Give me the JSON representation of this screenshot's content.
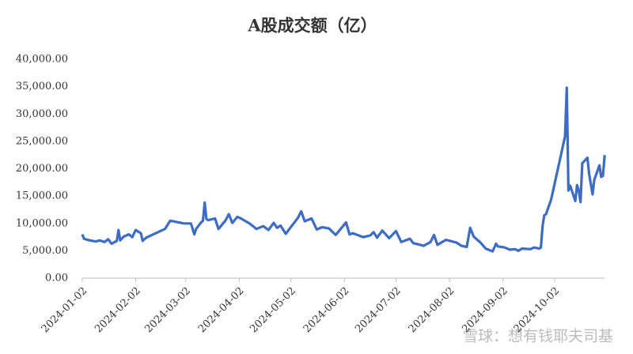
{
  "chart_data": {
    "type": "line",
    "title": "A股成交额（亿）",
    "x": [
      "2024-01-02",
      "2024-01-03",
      "2024-01-05",
      "2024-01-08",
      "2024-01-10",
      "2024-01-12",
      "2024-01-15",
      "2024-01-17",
      "2024-01-19",
      "2024-01-22",
      "2024-01-23",
      "2024-01-24",
      "2024-01-26",
      "2024-01-29",
      "2024-01-31",
      "2024-02-02",
      "2024-02-05",
      "2024-02-06",
      "2024-02-08",
      "2024-02-19",
      "2024-02-22",
      "2024-03-01",
      "2024-03-05",
      "2024-03-07",
      "2024-03-08",
      "2024-03-11",
      "2024-03-12",
      "2024-03-13",
      "2024-03-14",
      "2024-03-15",
      "2024-03-19",
      "2024-03-21",
      "2024-03-25",
      "2024-03-27",
      "2024-03-29",
      "2024-04-01",
      "2024-04-03",
      "2024-04-08",
      "2024-04-12",
      "2024-04-16",
      "2024-04-19",
      "2024-04-22",
      "2024-04-24",
      "2024-04-26",
      "2024-04-29",
      "2024-05-06",
      "2024-05-08",
      "2024-05-10",
      "2024-05-14",
      "2024-05-17",
      "2024-05-20",
      "2024-05-24",
      "2024-05-28",
      "2024-06-03",
      "2024-06-05",
      "2024-06-07",
      "2024-06-13",
      "2024-06-17",
      "2024-06-19",
      "2024-06-21",
      "2024-06-24",
      "2024-06-28",
      "2024-07-02",
      "2024-07-05",
      "2024-07-10",
      "2024-07-12",
      "2024-07-16",
      "2024-07-18",
      "2024-07-22",
      "2024-07-24",
      "2024-07-26",
      "2024-07-31",
      "2024-08-06",
      "2024-08-09",
      "2024-08-12",
      "2024-08-14",
      "2024-08-16",
      "2024-08-20",
      "2024-08-23",
      "2024-08-27",
      "2024-08-29",
      "2024-08-30",
      "2024-09-03",
      "2024-09-06",
      "2024-09-09",
      "2024-09-11",
      "2024-09-13",
      "2024-09-18",
      "2024-09-20",
      "2024-09-23",
      "2024-09-24",
      "2024-09-25",
      "2024-09-26",
      "2024-09-27",
      "2024-09-30",
      "2024-10-08",
      "2024-10-09",
      "2024-10-10",
      "2024-10-11",
      "2024-10-14",
      "2024-10-15",
      "2024-10-16",
      "2024-10-17",
      "2024-10-18",
      "2024-10-21",
      "2024-10-22",
      "2024-10-24",
      "2024-10-25",
      "2024-10-28",
      "2024-10-29",
      "2024-10-30",
      "2024-10-31"
    ],
    "series": [
      {
        "name": "A股成交额",
        "color": "#3d6cc4",
        "values": [
          8000,
          7200,
          7000,
          6800,
          6700,
          6900,
          6600,
          7100,
          6300,
          6800,
          8800,
          6900,
          7600,
          8000,
          7500,
          8800,
          8200,
          6800,
          7400,
          9000,
          10500,
          10000,
          10000,
          8000,
          9000,
          10200,
          10500,
          13800,
          10800,
          10600,
          10900,
          9000,
          10500,
          11700,
          10100,
          11200,
          10900,
          10000,
          9000,
          9500,
          8800,
          10100,
          9200,
          9600,
          8100,
          11000,
          12200,
          10400,
          10900,
          8900,
          9300,
          9100,
          7900,
          10200,
          8000,
          8200,
          7500,
          7800,
          8400,
          7400,
          8700,
          7300,
          8600,
          6600,
          7200,
          6400,
          6100,
          5900,
          6600,
          7900,
          6100,
          7000,
          6500,
          5900,
          5700,
          9200,
          7600,
          6500,
          5400,
          4900,
          6300,
          5800,
          5600,
          5200,
          5300,
          5000,
          5400,
          5300,
          5600,
          5400,
          5600,
          9500,
          11500,
          11700,
          14400,
          25900,
          34800,
          16000,
          16900,
          14100,
          17000,
          16000,
          13900,
          21000,
          22000,
          19000,
          15300,
          18000,
          20600,
          18500,
          18700,
          22500
        ]
      }
    ],
    "ylim": [
      0,
      40000
    ],
    "yticks": [
      {
        "value": 0,
        "label": "0.00"
      },
      {
        "value": 5000,
        "label": "5,000.00"
      },
      {
        "value": 10000,
        "label": "10,000.00"
      },
      {
        "value": 15000,
        "label": "15,000.00"
      },
      {
        "value": 20000,
        "label": "20,000.00"
      },
      {
        "value": 25000,
        "label": "25,000.00"
      },
      {
        "value": 30000,
        "label": "30,000.00"
      },
      {
        "value": 35000,
        "label": "35,000.00"
      },
      {
        "value": 40000,
        "label": "40,000.00"
      }
    ],
    "xticks": [
      "2024-01-02",
      "2024-02-02",
      "2024-03-02",
      "2024-04-02",
      "2024-05-02",
      "2024-06-02",
      "2024-07-02",
      "2024-08-02",
      "2024-09-02",
      "2024-10-02"
    ],
    "watermark": "雪球：想有钱耶夫司基"
  }
}
